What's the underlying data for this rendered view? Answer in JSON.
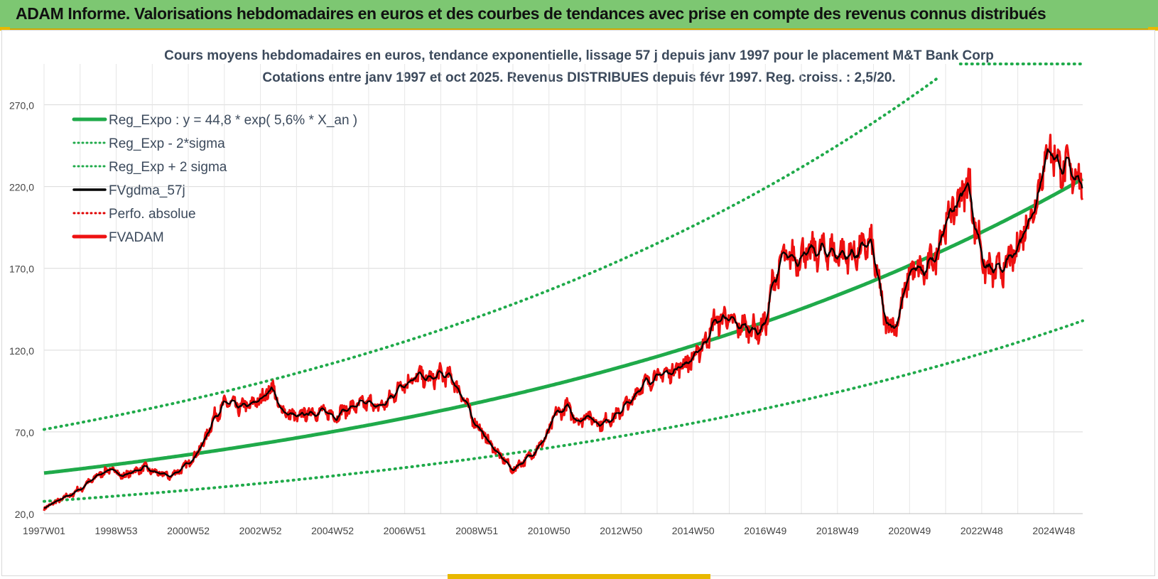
{
  "banner": {
    "title": "ADAM Informe. Valorisations hebdomadaires en euros et des courbes de tendances avec prise en compte des revenus connus distribués"
  },
  "colors": {
    "banner_bg": "#7dc772",
    "accent_yellow": "#e8b800",
    "reg_expo": "#1faa4a",
    "sigma_lines": "#1faa4a",
    "fvgdma": "#000000",
    "perfo": "#e00000",
    "fvadam": "#ee1111",
    "title_text": "#3c4a5c"
  },
  "chart_data": {
    "type": "line",
    "title": "Cours moyens hebdomadaires en euros, tendance exponentielle, lissage 57 j depuis janv 1997 pour le placement M&T Bank Corp",
    "subtitle": "Cotations entre janv 1997 et oct 2025. Revenus DISTRIBUES depuis févr 1997. Reg. croiss. : 2,5/20.",
    "ylim": [
      20,
      295
    ],
    "xlim": [
      1997.0,
      2025.8
    ],
    "grid": true,
    "legend_position": "top-left",
    "y_ticks": [
      {
        "value": 20,
        "label": "20,0"
      },
      {
        "value": 70,
        "label": "70,0"
      },
      {
        "value": 120,
        "label": "120,0"
      },
      {
        "value": 170,
        "label": "170,0"
      },
      {
        "value": 220,
        "label": "220,0"
      },
      {
        "value": 270,
        "label": "270,0"
      }
    ],
    "x_ticks": [
      {
        "value": 1997.0,
        "label": "1997W01"
      },
      {
        "value": 1999.0,
        "label": "1998W53"
      },
      {
        "value": 2001.0,
        "label": "2000W52"
      },
      {
        "value": 2003.0,
        "label": "2002W52"
      },
      {
        "value": 2005.0,
        "label": "2004W52"
      },
      {
        "value": 2007.0,
        "label": "2006W51"
      },
      {
        "value": 2009.0,
        "label": "2008W51"
      },
      {
        "value": 2011.0,
        "label": "2010W50"
      },
      {
        "value": 2013.0,
        "label": "2012W50"
      },
      {
        "value": 2015.0,
        "label": "2014W50"
      },
      {
        "value": 2017.0,
        "label": "2016W49"
      },
      {
        "value": 2019.0,
        "label": "2018W49"
      },
      {
        "value": 2021.0,
        "label": "2020W49"
      },
      {
        "value": 2023.0,
        "label": "2022W48"
      },
      {
        "value": 2025.0,
        "label": "2024W48"
      }
    ],
    "regression": {
      "a": 44.8,
      "rate": 0.056,
      "sigma_band_low_start": 27.5,
      "sigma_band_high_start": 71.5,
      "cap": 295
    },
    "series": [
      {
        "name": "Reg_Expo : y = 44,8 * exp( 5,6% *  X_an )",
        "style": "solid-thick",
        "color": "#1faa4a",
        "kind": "reg"
      },
      {
        "name": "Reg_Exp - 2*sigma",
        "style": "dotted",
        "color": "#1faa4a",
        "kind": "low"
      },
      {
        "name": "Reg_Exp + 2 sigma",
        "style": "dotted",
        "color": "#1faa4a",
        "kind": "high"
      },
      {
        "name": "FVgdma_57j",
        "style": "solid",
        "color": "#000000",
        "kind": "smooth"
      },
      {
        "name": "Perfo. absolue",
        "style": "dotted",
        "color": "#e00000",
        "kind": "none"
      },
      {
        "name": "FVADAM",
        "style": "solid-thick",
        "color": "#ee1111",
        "kind": "price"
      }
    ],
    "price_anchors": {
      "x": [
        1997.0,
        1997.3,
        1997.7,
        1998.0,
        1998.3,
        1998.6,
        1998.9,
        1999.2,
        1999.5,
        1999.8,
        2000.1,
        2000.3,
        2000.5,
        2000.8,
        2001.1,
        2001.4,
        2001.6,
        2001.8,
        2002.1,
        2002.4,
        2002.7,
        2003.0,
        2003.3,
        2003.6,
        2004.0,
        2004.4,
        2004.8,
        2005.1,
        2005.4,
        2005.7,
        2006.0,
        2006.3,
        2006.6,
        2006.9,
        2007.1,
        2007.4,
        2007.7,
        2008.0,
        2008.3,
        2008.6,
        2008.9,
        2009.1,
        2009.4,
        2009.7,
        2010.0,
        2010.3,
        2010.6,
        2010.9,
        2011.2,
        2011.5,
        2011.8,
        2012.1,
        2012.4,
        2012.8,
        2013.2,
        2013.6,
        2014.0,
        2014.4,
        2014.7,
        2015.0,
        2015.3,
        2015.6,
        2015.9,
        2016.2,
        2016.5,
        2016.8,
        2017.0,
        2017.2,
        2017.5,
        2017.8,
        2018.1,
        2018.4,
        2018.7,
        2019.0,
        2019.3,
        2019.6,
        2019.9,
        2020.1,
        2020.3,
        2020.5,
        2020.7,
        2020.9,
        2021.1,
        2021.4,
        2021.7,
        2022.0,
        2022.3,
        2022.6,
        2022.9,
        2023.1,
        2023.3,
        2023.6,
        2023.9,
        2024.2,
        2024.5,
        2024.7,
        2024.9,
        2025.0,
        2025.2,
        2025.4,
        2025.6,
        2025.8
      ],
      "y": [
        23,
        27,
        31,
        35,
        40,
        45,
        47,
        43,
        46,
        48,
        45,
        44,
        43,
        47,
        53,
        62,
        73,
        82,
        88,
        85,
        86,
        90,
        97,
        83,
        79,
        82,
        82,
        80,
        84,
        86,
        88,
        85,
        90,
        99,
        101,
        104,
        102,
        105,
        103,
        92,
        78,
        71,
        62,
        54,
        47,
        52,
        58,
        66,
        81,
        85,
        77,
        80,
        75,
        79,
        87,
        99,
        104,
        107,
        111,
        115,
        124,
        137,
        140,
        135,
        134,
        132,
        135,
        160,
        176,
        176,
        179,
        180,
        181,
        179,
        178,
        180,
        186,
        168,
        140,
        134,
        139,
        160,
        170,
        167,
        177,
        198,
        209,
        222,
        190,
        170,
        168,
        170,
        178,
        195,
        210,
        232,
        245,
        240,
        232,
        230,
        228,
        224
      ]
    }
  }
}
